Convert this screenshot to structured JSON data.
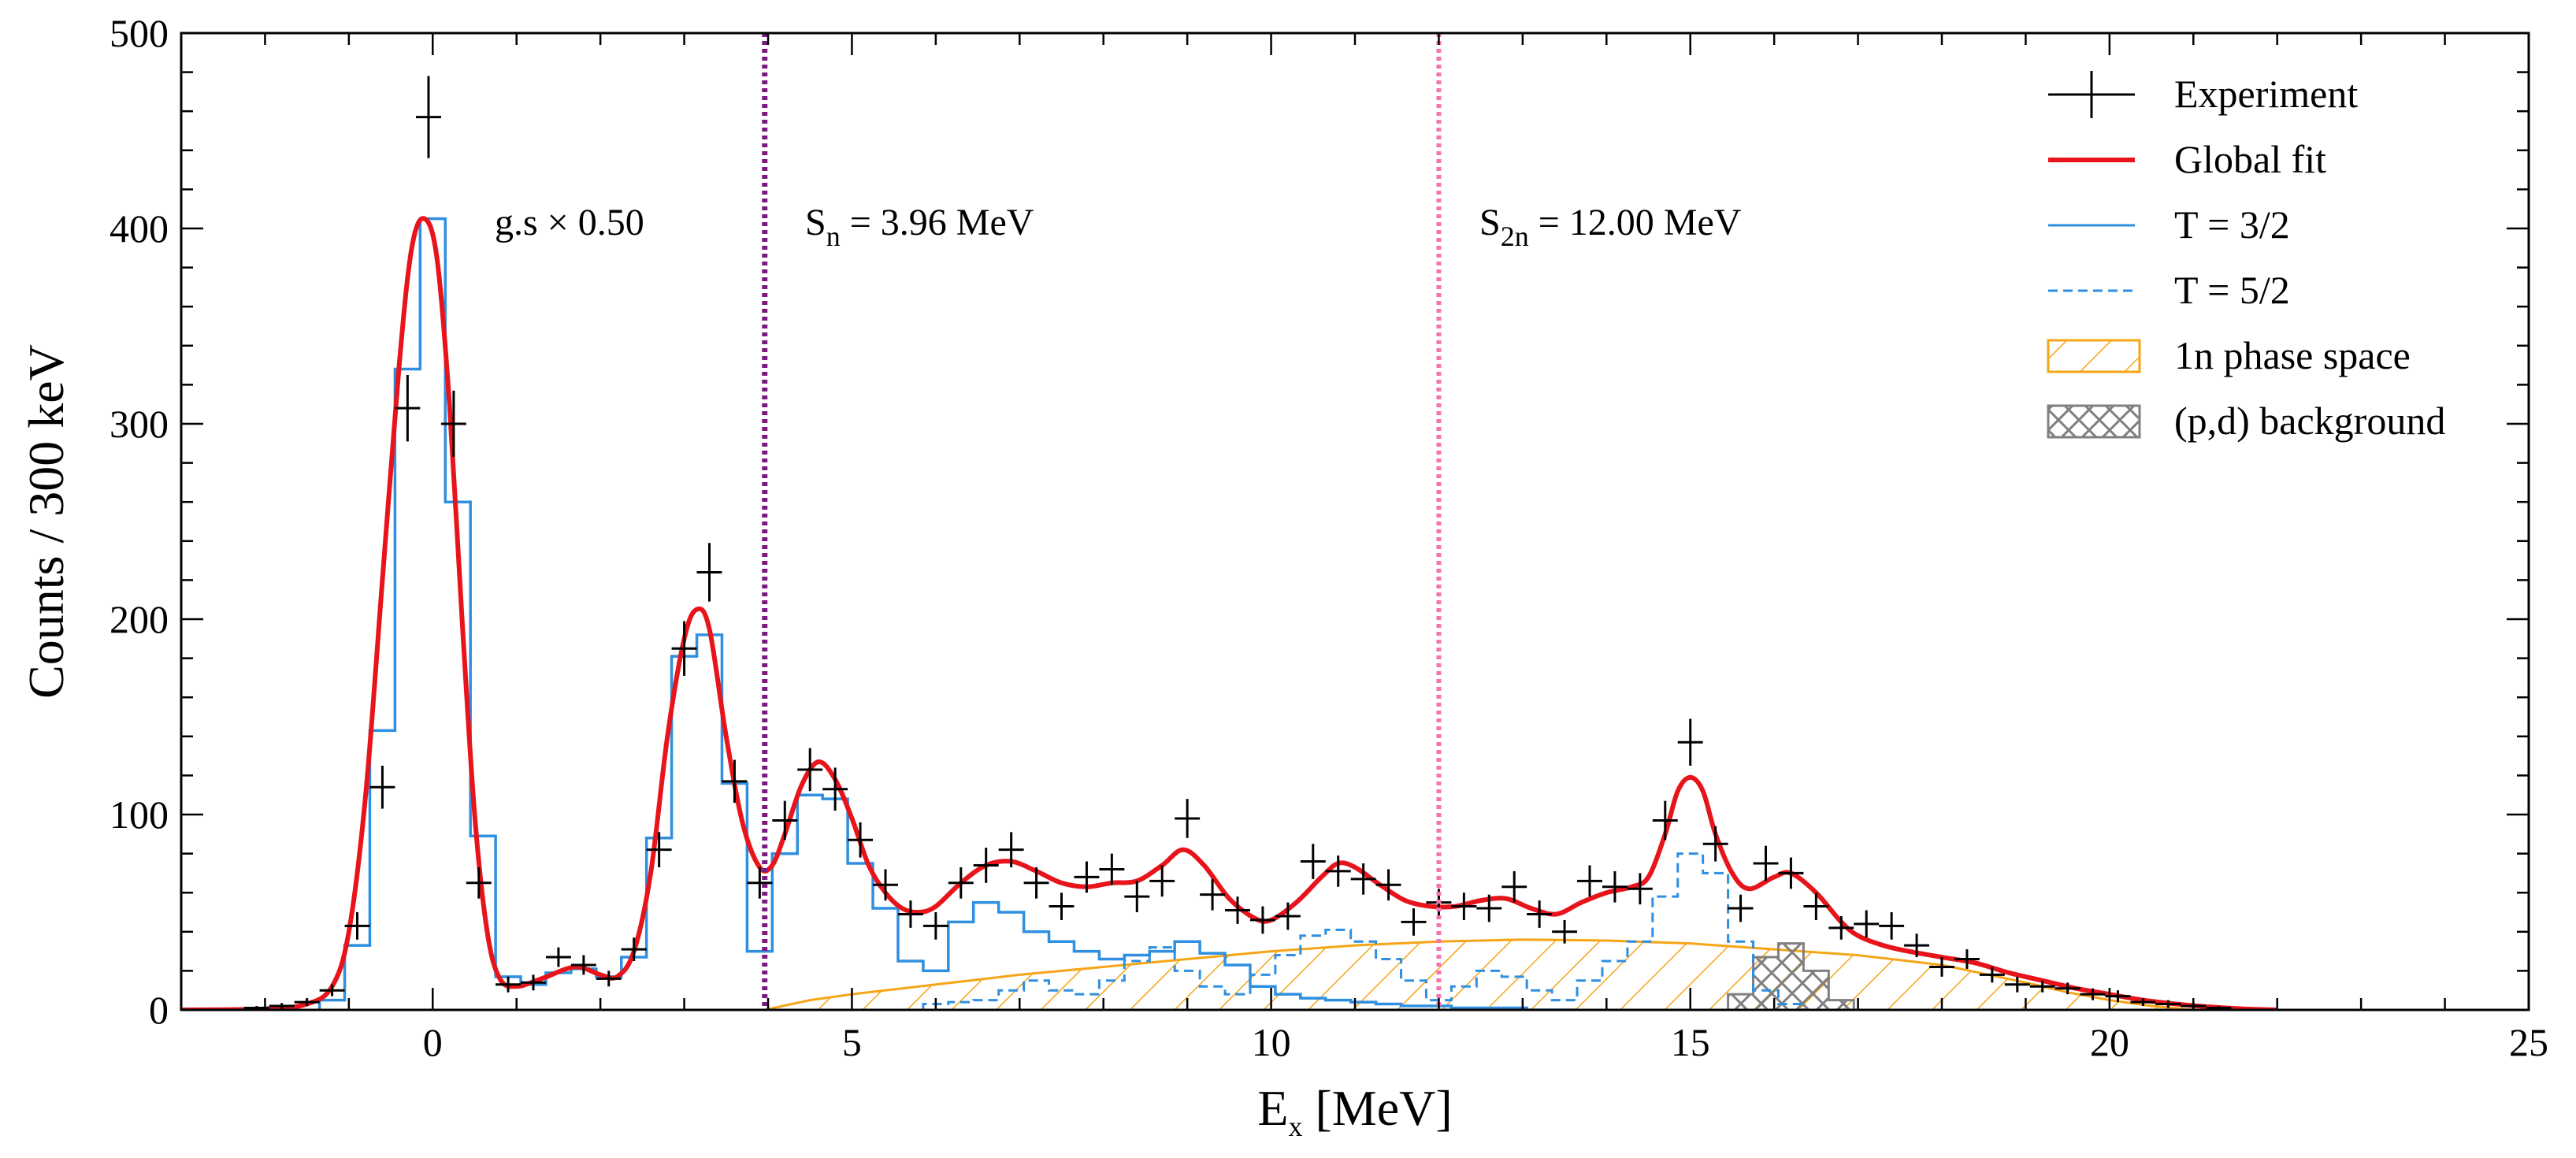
{
  "chart_data": {
    "type": "line",
    "xlabel_main": "E",
    "xlabel_sub": "x",
    "xlabel_unit": " [MeV]",
    "ylabel": "Counts / 300 keV",
    "xlim": [
      -3,
      25
    ],
    "ylim": [
      0,
      500
    ],
    "x_ticks": [
      0,
      5,
      10,
      15,
      20,
      25
    ],
    "y_ticks": [
      0,
      100,
      200,
      300,
      400,
      500
    ],
    "grid": false,
    "legend_position": "top-right",
    "colors": {
      "experiment": "#000000",
      "global_fit": "#e8141b",
      "t32": "#2f8fe0",
      "t52": "#2f8fe0",
      "phase_space": "#f5a516",
      "background": "#808080",
      "sn_line": "#7b1a84",
      "s2n_line": "#f574b4"
    },
    "annotations": {
      "gs_scale": "g.s × 0.50",
      "sn_main": "S",
      "sn_sub": "n",
      "sn_value": " = 3.96 MeV",
      "s2n_main": "S",
      "s2n_sub": "2n",
      "s2n_value": " = 12.00 MeV"
    },
    "thresholds": {
      "sn": 3.96,
      "s2n": 12.0
    },
    "legend": [
      {
        "label": "Experiment",
        "style": "errorbar"
      },
      {
        "label": "Global fit",
        "style": "solid-red"
      },
      {
        "label": "T = 3/2",
        "style": "solid-blue"
      },
      {
        "label": "T = 5/2",
        "style": "dashed-blue"
      },
      {
        "label": "1n phase space",
        "style": "hatch-orange"
      },
      {
        "label": "(p,d) background",
        "style": "hatch-gray"
      }
    ],
    "series": [
      {
        "name": "Experiment",
        "type": "errorbar",
        "points": [
          [
            -2.1,
            1,
            1
          ],
          [
            -1.8,
            2,
            1.5
          ],
          [
            -1.5,
            4,
            2
          ],
          [
            -1.2,
            10,
            3
          ],
          [
            -0.9,
            43,
            7
          ],
          [
            -0.6,
            114,
            11
          ],
          [
            -0.3,
            308,
            17
          ],
          [
            -0.05,
            457,
            21
          ],
          [
            0.25,
            300,
            17
          ],
          [
            0.55,
            65,
            8
          ],
          [
            0.9,
            13,
            4
          ],
          [
            1.2,
            14,
            4
          ],
          [
            1.5,
            27,
            5
          ],
          [
            1.8,
            23,
            5
          ],
          [
            2.1,
            16,
            4
          ],
          [
            2.4,
            31,
            6
          ],
          [
            2.7,
            82,
            9
          ],
          [
            3.0,
            185,
            14
          ],
          [
            3.3,
            224,
            15
          ],
          [
            3.6,
            117,
            11
          ],
          [
            3.9,
            65,
            8
          ],
          [
            4.2,
            97,
            10
          ],
          [
            4.5,
            123,
            11
          ],
          [
            4.8,
            113,
            11
          ],
          [
            5.1,
            87,
            9
          ],
          [
            5.4,
            64,
            8
          ],
          [
            5.7,
            49,
            7
          ],
          [
            6.0,
            43,
            7
          ],
          [
            6.3,
            65,
            8
          ],
          [
            6.6,
            74,
            9
          ],
          [
            6.9,
            82,
            9
          ],
          [
            7.2,
            65,
            8
          ],
          [
            7.5,
            53,
            7
          ],
          [
            7.8,
            68,
            8
          ],
          [
            8.1,
            72,
            8
          ],
          [
            8.4,
            58,
            8
          ],
          [
            8.7,
            66,
            8
          ],
          [
            9.0,
            98,
            10
          ],
          [
            9.3,
            59,
            8
          ],
          [
            9.6,
            51,
            7
          ],
          [
            9.9,
            46,
            7
          ],
          [
            10.2,
            48,
            7
          ],
          [
            10.5,
            76,
            9
          ],
          [
            10.8,
            71,
            8
          ],
          [
            11.1,
            67,
            8
          ],
          [
            11.4,
            64,
            8
          ],
          [
            11.7,
            45,
            7
          ],
          [
            12.0,
            55,
            7
          ],
          [
            12.3,
            53,
            7
          ],
          [
            12.6,
            52,
            7
          ],
          [
            12.9,
            63,
            8
          ],
          [
            13.2,
            49,
            7
          ],
          [
            13.5,
            40,
            6
          ],
          [
            13.8,
            66,
            8
          ],
          [
            14.1,
            63,
            8
          ],
          [
            14.4,
            62,
            8
          ],
          [
            14.7,
            97,
            10
          ],
          [
            15.0,
            137,
            12
          ],
          [
            15.3,
            85,
            9
          ],
          [
            15.6,
            52,
            7
          ],
          [
            15.9,
            75,
            9
          ],
          [
            16.2,
            70,
            8
          ],
          [
            16.5,
            53,
            7
          ],
          [
            16.8,
            42,
            6
          ],
          [
            17.1,
            44,
            7
          ],
          [
            17.4,
            43,
            7
          ],
          [
            17.7,
            33,
            6
          ],
          [
            18.0,
            22,
            5
          ],
          [
            18.3,
            26,
            5
          ],
          [
            18.6,
            18,
            4
          ],
          [
            18.9,
            13,
            4
          ],
          [
            19.2,
            12,
            3
          ],
          [
            19.5,
            11,
            3
          ],
          [
            19.8,
            8,
            3
          ],
          [
            20.1,
            7,
            3
          ],
          [
            20.4,
            4,
            2
          ],
          [
            20.7,
            3,
            2
          ],
          [
            21.0,
            2,
            1.5
          ],
          [
            21.3,
            1,
            1
          ]
        ]
      },
      {
        "name": "Global fit",
        "type": "line",
        "points": [
          [
            -3,
            0
          ],
          [
            -2,
            0.5
          ],
          [
            -1.5,
            3
          ],
          [
            -1.2,
            12
          ],
          [
            -1.0,
            40
          ],
          [
            -0.8,
            110
          ],
          [
            -0.6,
            220
          ],
          [
            -0.4,
            330
          ],
          [
            -0.25,
            390
          ],
          [
            -0.1,
            405
          ],
          [
            0.05,
            385
          ],
          [
            0.2,
            310
          ],
          [
            0.35,
            200
          ],
          [
            0.5,
            100
          ],
          [
            0.65,
            40
          ],
          [
            0.8,
            16
          ],
          [
            1.0,
            12
          ],
          [
            1.3,
            16
          ],
          [
            1.7,
            22
          ],
          [
            2.0,
            18
          ],
          [
            2.2,
            17
          ],
          [
            2.4,
            30
          ],
          [
            2.6,
            70
          ],
          [
            2.8,
            140
          ],
          [
            3.0,
            190
          ],
          [
            3.15,
            205
          ],
          [
            3.3,
            195
          ],
          [
            3.5,
            140
          ],
          [
            3.7,
            95
          ],
          [
            3.9,
            73
          ],
          [
            4.05,
            74
          ],
          [
            4.2,
            90
          ],
          [
            4.4,
            115
          ],
          [
            4.6,
            127
          ],
          [
            4.8,
            118
          ],
          [
            5.0,
            98
          ],
          [
            5.2,
            74
          ],
          [
            5.4,
            60
          ],
          [
            5.6,
            52
          ],
          [
            5.8,
            50
          ],
          [
            6.0,
            53
          ],
          [
            6.3,
            65
          ],
          [
            6.6,
            74
          ],
          [
            6.9,
            76
          ],
          [
            7.2,
            71
          ],
          [
            7.5,
            65
          ],
          [
            7.8,
            63
          ],
          [
            8.1,
            65
          ],
          [
            8.4,
            66
          ],
          [
            8.7,
            74
          ],
          [
            8.95,
            82
          ],
          [
            9.2,
            74
          ],
          [
            9.5,
            57
          ],
          [
            9.8,
            47
          ],
          [
            10.0,
            46
          ],
          [
            10.3,
            55
          ],
          [
            10.6,
            68
          ],
          [
            10.8,
            75
          ],
          [
            11.0,
            73
          ],
          [
            11.3,
            64
          ],
          [
            11.6,
            56
          ],
          [
            11.9,
            53
          ],
          [
            12.2,
            53
          ],
          [
            12.5,
            56
          ],
          [
            12.8,
            57
          ],
          [
            13.1,
            52
          ],
          [
            13.4,
            49
          ],
          [
            13.7,
            55
          ],
          [
            14.0,
            60
          ],
          [
            14.3,
            63
          ],
          [
            14.5,
            68
          ],
          [
            14.7,
            90
          ],
          [
            14.85,
            112
          ],
          [
            15.0,
            119
          ],
          [
            15.15,
            112
          ],
          [
            15.3,
            90
          ],
          [
            15.5,
            70
          ],
          [
            15.7,
            62
          ],
          [
            16.0,
            68
          ],
          [
            16.2,
            70
          ],
          [
            16.5,
            60
          ],
          [
            16.8,
            45
          ],
          [
            17.0,
            38
          ],
          [
            17.3,
            33
          ],
          [
            17.6,
            30
          ],
          [
            18.0,
            27
          ],
          [
            18.4,
            24
          ],
          [
            18.8,
            19
          ],
          [
            19.2,
            15
          ],
          [
            19.6,
            11
          ],
          [
            20.0,
            8
          ],
          [
            20.4,
            5
          ],
          [
            20.8,
            3
          ],
          [
            21.2,
            1.5
          ],
          [
            21.6,
            0.5
          ],
          [
            22,
            0
          ]
        ]
      },
      {
        "name": "T = 3/2",
        "type": "step",
        "width": 0.3,
        "values": [
          [
            -1.2,
            5
          ],
          [
            -0.9,
            33
          ],
          [
            -0.6,
            143
          ],
          [
            -0.3,
            328
          ],
          [
            0.0,
            405
          ],
          [
            0.3,
            260
          ],
          [
            0.6,
            89
          ],
          [
            0.9,
            17
          ],
          [
            1.2,
            13
          ],
          [
            1.5,
            19
          ],
          [
            1.8,
            21
          ],
          [
            2.1,
            17
          ],
          [
            2.4,
            27
          ],
          [
            2.7,
            88
          ],
          [
            3.0,
            181
          ],
          [
            3.3,
            192
          ],
          [
            3.6,
            116
          ],
          [
            3.9,
            30
          ],
          [
            4.2,
            80
          ],
          [
            4.5,
            110
          ],
          [
            4.8,
            108
          ],
          [
            5.1,
            75
          ],
          [
            5.4,
            52
          ],
          [
            5.7,
            25
          ],
          [
            6.0,
            20
          ],
          [
            6.3,
            45
          ],
          [
            6.6,
            55
          ],
          [
            6.9,
            50
          ],
          [
            7.2,
            40
          ],
          [
            7.5,
            35
          ],
          [
            7.8,
            30
          ],
          [
            8.1,
            26
          ],
          [
            8.4,
            28
          ],
          [
            8.7,
            30
          ],
          [
            9.0,
            35
          ],
          [
            9.3,
            29
          ],
          [
            9.6,
            23
          ],
          [
            9.9,
            12
          ],
          [
            10.2,
            8
          ],
          [
            10.5,
            6
          ],
          [
            10.8,
            5
          ],
          [
            11.1,
            4
          ],
          [
            11.4,
            3
          ],
          [
            11.7,
            2
          ],
          [
            12.0,
            2
          ],
          [
            12.3,
            1
          ],
          [
            12.6,
            1
          ],
          [
            12.9,
            1
          ],
          [
            13.2,
            0
          ],
          [
            13.5,
            0
          ]
        ]
      },
      {
        "name": "T = 5/2",
        "type": "step",
        "width": 0.3,
        "values": [
          [
            6.0,
            3
          ],
          [
            6.3,
            4
          ],
          [
            6.6,
            5
          ],
          [
            6.9,
            10
          ],
          [
            7.2,
            15
          ],
          [
            7.5,
            10
          ],
          [
            7.8,
            8
          ],
          [
            8.1,
            15
          ],
          [
            8.4,
            25
          ],
          [
            8.7,
            32
          ],
          [
            9.0,
            20
          ],
          [
            9.3,
            12
          ],
          [
            9.6,
            8
          ],
          [
            9.9,
            18
          ],
          [
            10.2,
            28
          ],
          [
            10.5,
            38
          ],
          [
            10.8,
            41
          ],
          [
            11.1,
            35
          ],
          [
            11.4,
            26
          ],
          [
            11.7,
            15
          ],
          [
            12.0,
            5
          ],
          [
            12.3,
            12
          ],
          [
            12.6,
            20
          ],
          [
            12.9,
            17
          ],
          [
            13.2,
            10
          ],
          [
            13.5,
            5
          ],
          [
            13.8,
            15
          ],
          [
            14.1,
            25
          ],
          [
            14.4,
            35
          ],
          [
            14.7,
            58
          ],
          [
            15.0,
            80
          ],
          [
            15.3,
            70
          ],
          [
            15.6,
            35
          ],
          [
            15.9,
            10
          ],
          [
            16.2,
            3
          ],
          [
            16.5,
            0
          ]
        ]
      },
      {
        "name": "1n phase space",
        "type": "area",
        "points": [
          [
            3.96,
            0
          ],
          [
            4.5,
            5
          ],
          [
            5,
            8
          ],
          [
            6,
            13
          ],
          [
            7,
            18
          ],
          [
            8,
            22
          ],
          [
            9,
            26
          ],
          [
            10,
            30
          ],
          [
            11,
            33
          ],
          [
            12,
            35
          ],
          [
            13,
            36
          ],
          [
            14,
            35.5
          ],
          [
            15,
            34
          ],
          [
            16,
            31
          ],
          [
            17,
            28
          ],
          [
            18,
            23
          ],
          [
            19,
            14
          ],
          [
            19.5,
            9
          ],
          [
            20,
            5
          ],
          [
            20.5,
            2
          ],
          [
            21,
            0
          ]
        ]
      },
      {
        "name": "(p,d) background",
        "type": "step-area",
        "width": 0.3,
        "values": [
          [
            15.6,
            8
          ],
          [
            15.9,
            27
          ],
          [
            16.2,
            34
          ],
          [
            16.5,
            20
          ],
          [
            16.8,
            5
          ]
        ]
      }
    ]
  }
}
